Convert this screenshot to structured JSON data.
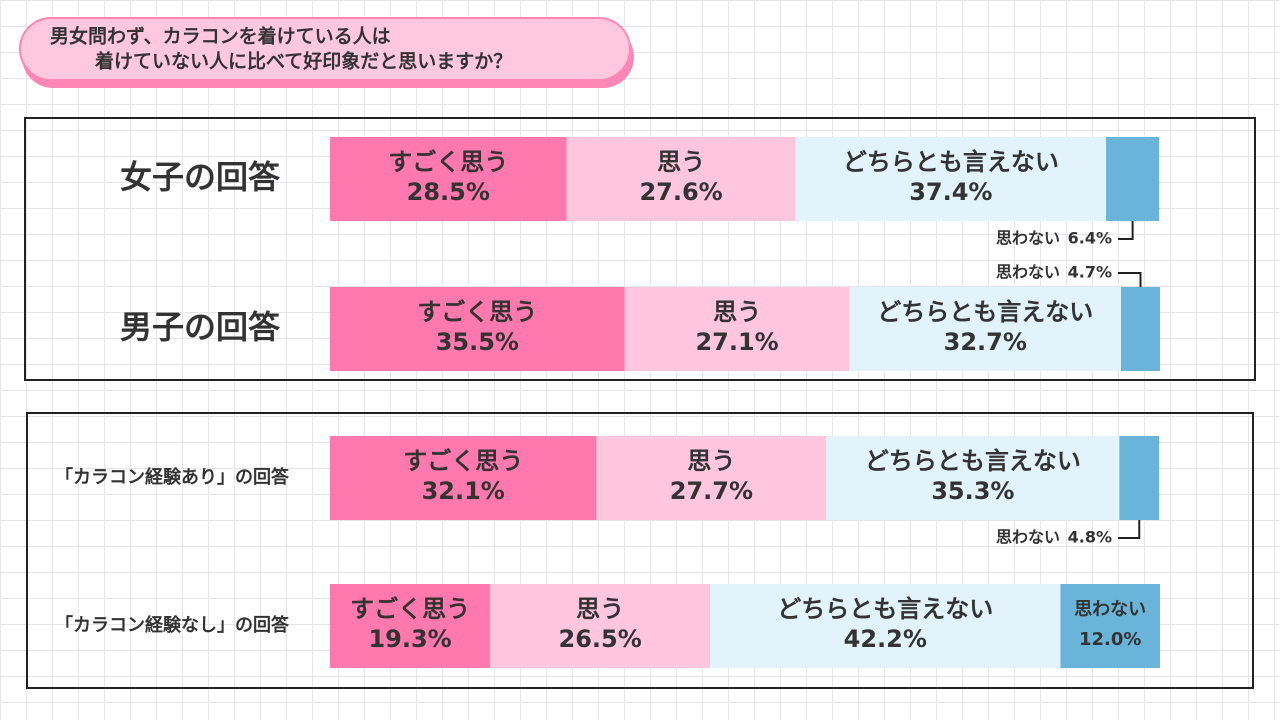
{
  "title": [
    "男女問わず、カラコンを着けている人は",
    "着けていない人に比べて好印象だと思いますか？"
  ],
  "chart_data": [
    {
      "type": "bar",
      "orientation": "horizontal",
      "stacked": true,
      "xlim": [
        0,
        100
      ],
      "categories": [
        "女子の回答",
        "男子の回答"
      ],
      "series": [
        {
          "name": "すごく思う",
          "color": "#ff78ae",
          "values": [
            28.5,
            35.5
          ],
          "value_labels": [
            "28.5%",
            "35.5%"
          ]
        },
        {
          "name": "思う",
          "color": "#ffc6dd",
          "values": [
            27.6,
            27.1
          ],
          "value_labels": [
            "27.6%",
            "27.1%"
          ]
        },
        {
          "name": "どちらとも言えない",
          "color": "#e2f3fb",
          "values": [
            37.4,
            32.7
          ],
          "value_labels": [
            "37.4%",
            "32.7%"
          ]
        },
        {
          "name": "思わない",
          "color": "#6ab4d9",
          "values": [
            6.4,
            4.7
          ],
          "value_labels": [
            "6.4%",
            "4.7%"
          ]
        }
      ]
    },
    {
      "type": "bar",
      "orientation": "horizontal",
      "stacked": true,
      "xlim": [
        0,
        100
      ],
      "categories": [
        "「カラコン経験あり」の回答",
        "「カラコン経験なし」の回答"
      ],
      "series": [
        {
          "name": "すごく思う",
          "color": "#ff78ae",
          "values": [
            32.1,
            19.3
          ],
          "value_labels": [
            "32.1%",
            "19.3%"
          ]
        },
        {
          "name": "思う",
          "color": "#ffc6dd",
          "values": [
            27.7,
            26.5
          ],
          "value_labels": [
            "27.7%",
            "26.5%"
          ]
        },
        {
          "name": "どちらとも言えない",
          "color": "#e2f3fb",
          "values": [
            35.3,
            42.2
          ],
          "value_labels": [
            "35.3%",
            "42.2%"
          ]
        },
        {
          "name": "思わない",
          "color": "#6ab4d9",
          "values": [
            4.8,
            12.0
          ],
          "value_labels": [
            "4.8%",
            "12.0%"
          ]
        }
      ]
    }
  ]
}
